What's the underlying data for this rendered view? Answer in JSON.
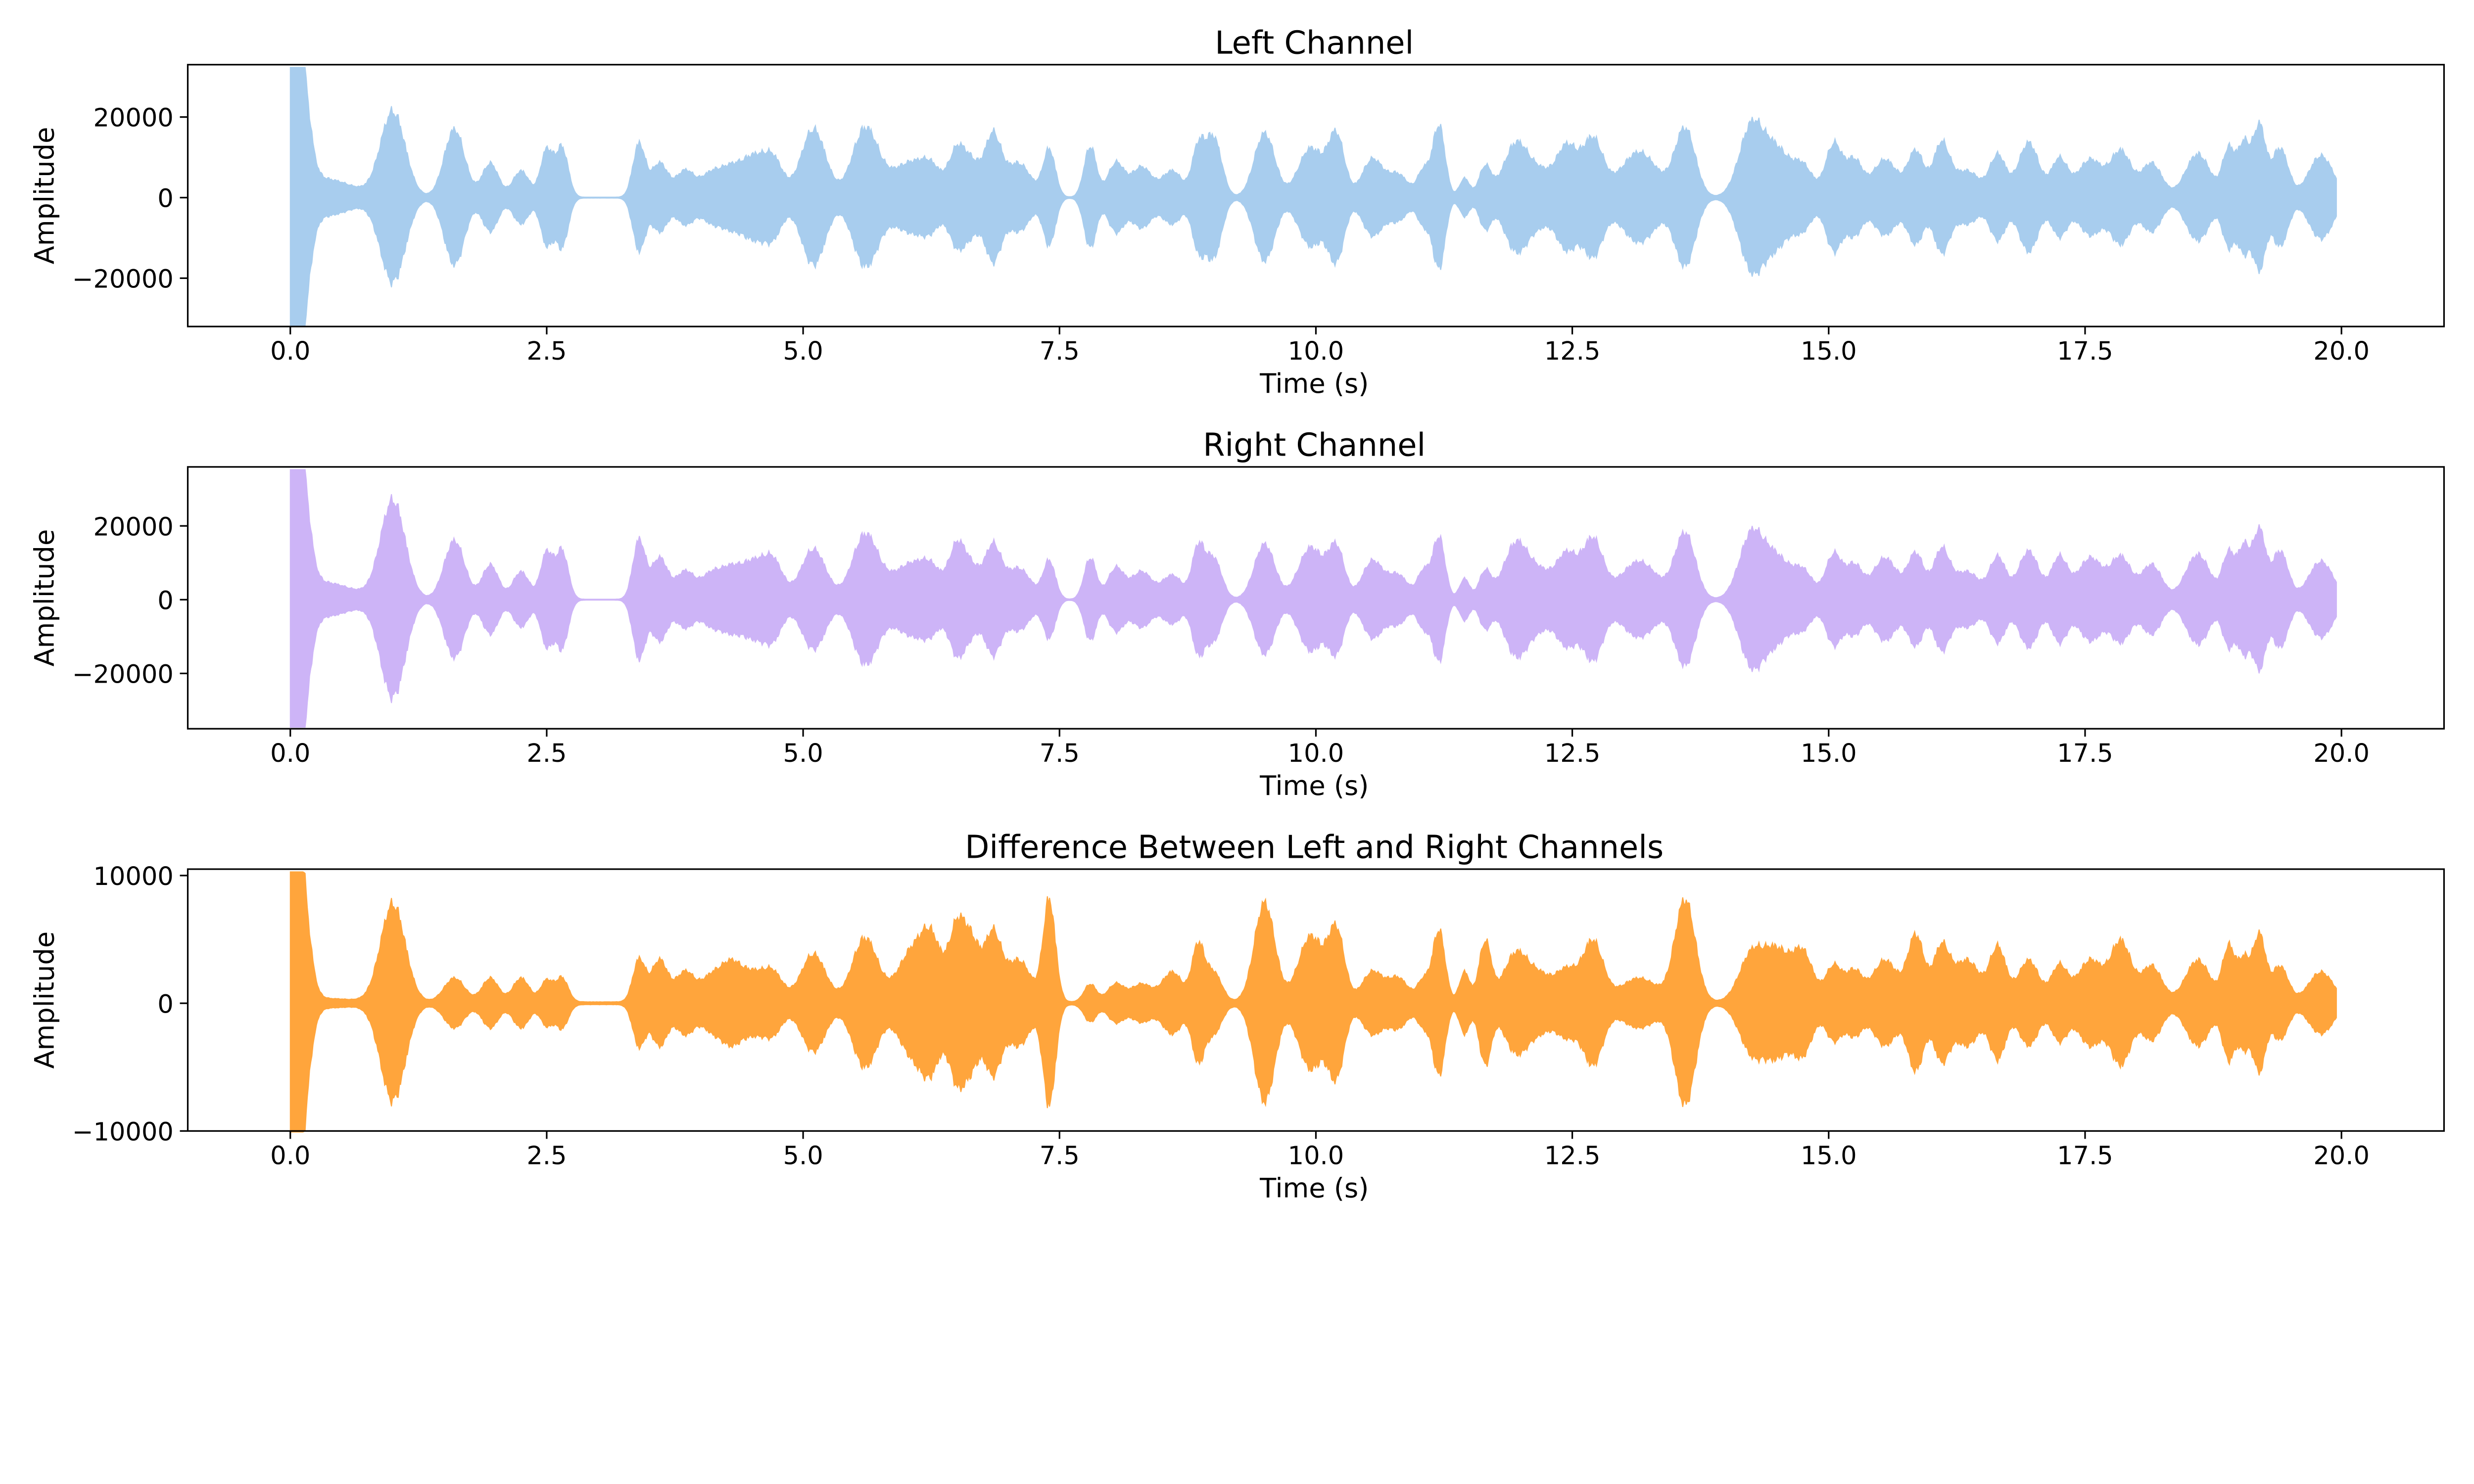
{
  "chart_data": [
    {
      "type": "area",
      "title": "Left Channel",
      "xlabel": "Time (s)",
      "ylabel": "Amplitude",
      "xlim": [
        -1,
        21
      ],
      "ylim": [
        -32000,
        33000
      ],
      "xticks": [
        0.0,
        2.5,
        5.0,
        7.5,
        10.0,
        12.5,
        15.0,
        17.5,
        20.0
      ],
      "xtick_labels": [
        "0.0",
        "2.5",
        "5.0",
        "7.5",
        "10.0",
        "12.5",
        "15.0",
        "17.5",
        "20.0"
      ],
      "yticks": [
        -20000,
        0,
        20000
      ],
      "ytick_labels": [
        "−20000",
        "0",
        "20000"
      ],
      "grid": false,
      "color": "#a8cdee",
      "series": [
        {
          "envelope": {
            "t": [
              0.0,
              0.1,
              0.3,
              1.0,
              1.6,
              1.95,
              2.25,
              2.5,
              2.65,
              3.4,
              3.6,
              3.85,
              4.1,
              4.3,
              4.5,
              4.7,
              5.1,
              5.6,
              5.85,
              6.05,
              6.25,
              6.5,
              6.65,
              6.85,
              7.1,
              7.4,
              7.8,
              8.05,
              8.3,
              8.6,
              8.85,
              9.0,
              9.5,
              9.95,
              10.2,
              10.55,
              10.8,
              11.05,
              11.2,
              11.45,
              11.65,
              11.95,
              12.2,
              12.45,
              12.7,
              13.15,
              13.6,
              14.25,
              14.5,
              14.75,
              15.05,
              15.25,
              15.55,
              15.85,
              16.1,
              16.35,
              16.65,
              16.95,
              17.25,
              17.55,
              17.85,
              18.15,
              18.6,
              18.9,
              19.05,
              19.2,
              19.4,
              19.8
            ],
            "amp": [
              26000,
              29000,
              5000,
              22500,
              18000,
              9000,
              7000,
              12500,
              13000,
              14000,
              9000,
              7000,
              6000,
              7000,
              9000,
              10500,
              18000,
              15500,
              5000,
              5000,
              7000,
              12000,
              8000,
              16000,
              9000,
              12500,
              13500,
              9000,
              8000,
              7000,
              12000,
              16000,
              17000,
              13000,
              16000,
              10000,
              6000,
              7000,
              19000,
              5000,
              8000,
              14000,
              6000,
              13000,
              15000,
              12000,
              18000,
              19000,
              11500,
              8000,
              14000,
              9500,
              10000,
              12000,
              14000,
              7000,
              11000,
              14500,
              10000,
              10000,
              12000,
              9000,
              11500,
              12500,
              14000,
              18500,
              13000,
              11000
            ],
            "width": [
              0.08,
              0.08,
              0.3,
              0.12,
              0.1,
              0.08,
              0.08,
              0.06,
              0.06,
              0.06,
              0.08,
              0.09,
              0.1,
              0.1,
              0.1,
              0.1,
              0.12,
              0.12,
              0.25,
              0.12,
              0.1,
              0.08,
              0.08,
              0.08,
              0.12,
              0.06,
              0.06,
              0.08,
              0.1,
              0.1,
              0.06,
              0.08,
              0.1,
              0.12,
              0.08,
              0.1,
              0.1,
              0.06,
              0.06,
              0.05,
              0.06,
              0.12,
              0.12,
              0.1,
              0.1,
              0.18,
              0.1,
              0.12,
              0.12,
              0.1,
              0.08,
              0.08,
              0.12,
              0.08,
              0.08,
              0.12,
              0.08,
              0.1,
              0.08,
              0.12,
              0.1,
              0.1,
              0.12,
              0.06,
              0.06,
              0.06,
              0.08,
              0.12
            ]
          }
        }
      ]
    },
    {
      "type": "area",
      "title": "Right Channel",
      "xlabel": "Time (s)",
      "ylabel": "Amplitude",
      "xlim": [
        -1,
        21
      ],
      "ylim": [
        -35000,
        36000
      ],
      "xticks": [
        0.0,
        2.5,
        5.0,
        7.5,
        10.0,
        12.5,
        15.0,
        17.5,
        20.0
      ],
      "xtick_labels": [
        "0.0",
        "2.5",
        "5.0",
        "7.5",
        "10.0",
        "12.5",
        "15.0",
        "17.5",
        "20.0"
      ],
      "yticks": [
        -20000,
        0,
        20000
      ],
      "ytick_labels": [
        "−20000",
        "0",
        "20000"
      ],
      "grid": false,
      "color": "#cdb4f7",
      "series": [
        {
          "envelope": {
            "t": [
              0.0,
              0.1,
              0.3,
              1.0,
              1.6,
              1.95,
              2.25,
              2.5,
              2.65,
              3.4,
              3.6,
              3.85,
              4.1,
              4.3,
              4.5,
              4.7,
              5.1,
              5.6,
              5.85,
              6.05,
              6.25,
              6.5,
              6.65,
              6.85,
              7.1,
              7.4,
              7.8,
              8.05,
              8.3,
              8.6,
              8.85,
              9.0,
              9.5,
              9.95,
              10.2,
              10.55,
              10.8,
              11.05,
              11.2,
              11.45,
              11.65,
              11.95,
              12.2,
              12.45,
              12.7,
              13.15,
              13.6,
              14.25,
              14.5,
              14.75,
              15.05,
              15.25,
              15.55,
              15.85,
              16.1,
              16.35,
              16.65,
              16.95,
              17.25,
              17.55,
              17.85,
              18.15,
              18.6,
              18.9,
              19.05,
              19.2,
              19.4,
              19.8
            ],
            "amp": [
              30000,
              32000,
              5000,
              28500,
              17000,
              10000,
              8000,
              13500,
              14000,
              17000,
              12000,
              8000,
              7000,
              8000,
              9000,
              11500,
              14500,
              16000,
              5000,
              6000,
              8000,
              15000,
              8000,
              15000,
              9000,
              11000,
              12000,
              9000,
              8000,
              7000,
              14000,
              12000,
              16000,
              15000,
              14500,
              11000,
              7000,
              8000,
              18000,
              6000,
              8000,
              16000,
              7000,
              12500,
              17000,
              11000,
              19000,
              19000,
              11000,
              8000,
              13000,
              9500,
              12000,
              13000,
              14000,
              8000,
              12000,
              14000,
              12000,
              12000,
              12000,
              10000,
              13000,
              13000,
              15000,
              19500,
              14000,
              11000
            ],
            "width": [
              0.08,
              0.08,
              0.3,
              0.12,
              0.1,
              0.08,
              0.08,
              0.06,
              0.06,
              0.06,
              0.08,
              0.09,
              0.1,
              0.1,
              0.1,
              0.1,
              0.12,
              0.12,
              0.25,
              0.12,
              0.1,
              0.08,
              0.08,
              0.08,
              0.12,
              0.06,
              0.06,
              0.08,
              0.1,
              0.1,
              0.06,
              0.08,
              0.1,
              0.12,
              0.08,
              0.1,
              0.1,
              0.06,
              0.06,
              0.05,
              0.06,
              0.12,
              0.12,
              0.1,
              0.1,
              0.18,
              0.1,
              0.12,
              0.12,
              0.1,
              0.08,
              0.08,
              0.12,
              0.08,
              0.08,
              0.12,
              0.08,
              0.1,
              0.08,
              0.12,
              0.1,
              0.1,
              0.12,
              0.06,
              0.06,
              0.06,
              0.08,
              0.12
            ]
          }
        }
      ]
    },
    {
      "type": "area",
      "title": "Difference Between Left and Right Channels",
      "xlabel": "Time (s)",
      "ylabel": "Amplitude",
      "xlim": [
        -1,
        21
      ],
      "ylim": [
        -10000,
        10500
      ],
      "xticks": [
        0.0,
        2.5,
        5.0,
        7.5,
        10.0,
        12.5,
        15.0,
        17.5,
        20.0
      ],
      "xtick_labels": [
        "0.0",
        "2.5",
        "5.0",
        "7.5",
        "10.0",
        "12.5",
        "15.0",
        "17.5",
        "20.0"
      ],
      "yticks": [
        -10000,
        0,
        10000
      ],
      "ytick_labels": [
        "−10000",
        "0",
        "10000"
      ],
      "grid": false,
      "color": "#ffa53c",
      "series": [
        {
          "envelope": {
            "t": [
              0.0,
              0.1,
              0.3,
              1.0,
              1.6,
              1.95,
              2.25,
              2.5,
              2.65,
              3.4,
              3.6,
              3.85,
              4.1,
              4.3,
              4.5,
              4.7,
              5.1,
              5.6,
              5.85,
              6.05,
              6.25,
              6.5,
              6.65,
              6.85,
              7.1,
              7.4,
              7.8,
              8.05,
              8.3,
              8.6,
              8.85,
              9.0,
              9.5,
              9.95,
              10.2,
              10.55,
              10.8,
              11.05,
              11.2,
              11.45,
              11.65,
              11.95,
              12.2,
              12.45,
              12.7,
              13.15,
              13.6,
              14.25,
              14.5,
              14.75,
              15.05,
              15.25,
              15.55,
              15.85,
              16.1,
              16.35,
              16.65,
              16.95,
              17.25,
              17.55,
              17.85,
              18.15,
              18.6,
              18.9,
              19.05,
              19.2,
              19.4,
              19.8
            ],
            "amp": [
              8500,
              9500,
              300,
              8200,
              2000,
              2000,
              2000,
              1800,
              2000,
              3500,
              3500,
              2500,
              2000,
              3000,
              2000,
              2500,
              4000,
              5000,
              600,
              3500,
              5000,
              6000,
              4500,
              5500,
              3500,
              8500,
              1500,
              1500,
              1500,
              2500,
              4500,
              2500,
              8300,
              5500,
              5800,
              2500,
              2000,
              1800,
              6000,
              2500,
              5000,
              4000,
              2000,
              2500,
              5000,
              2000,
              8500,
              4000,
              4000,
              4000,
              3000,
              2500,
              3500,
              5500,
              4500,
              3500,
              4500,
              3500,
              3000,
              3500,
              5000,
              3000,
              3500,
              4500,
              3500,
              5500,
              3000,
              2500
            ],
            "width": [
              0.08,
              0.08,
              0.3,
              0.12,
              0.1,
              0.08,
              0.08,
              0.06,
              0.06,
              0.06,
              0.08,
              0.09,
              0.1,
              0.1,
              0.1,
              0.1,
              0.12,
              0.12,
              0.25,
              0.12,
              0.1,
              0.08,
              0.08,
              0.08,
              0.12,
              0.06,
              0.06,
              0.08,
              0.1,
              0.1,
              0.06,
              0.08,
              0.1,
              0.12,
              0.08,
              0.1,
              0.1,
              0.06,
              0.06,
              0.05,
              0.06,
              0.12,
              0.12,
              0.1,
              0.1,
              0.18,
              0.1,
              0.12,
              0.12,
              0.1,
              0.08,
              0.08,
              0.12,
              0.08,
              0.08,
              0.12,
              0.08,
              0.1,
              0.08,
              0.12,
              0.1,
              0.1,
              0.12,
              0.06,
              0.06,
              0.06,
              0.08,
              0.12
            ]
          }
        }
      ]
    }
  ]
}
